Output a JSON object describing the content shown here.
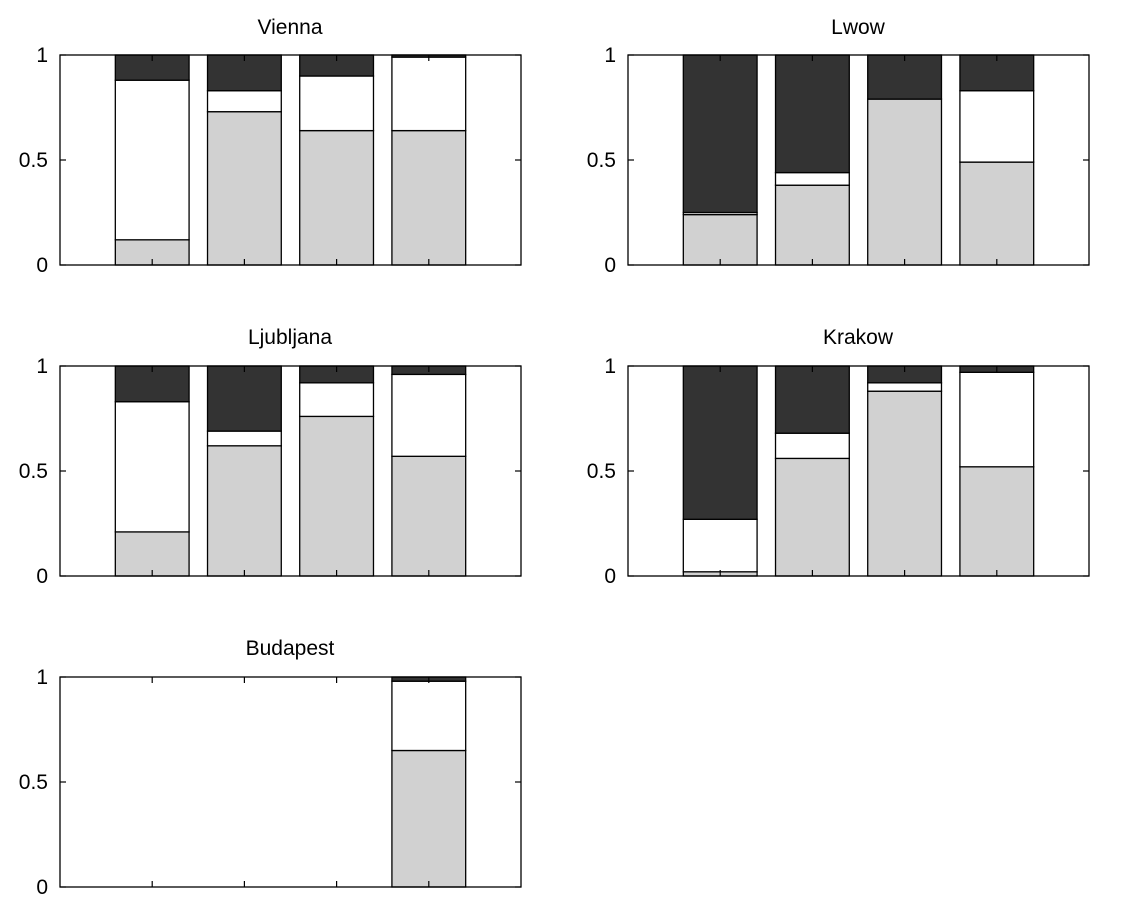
{
  "colors": {
    "bottom_segment": "#d1d1d1",
    "middle_segment": "#ffffff",
    "top_segment": "#333333",
    "axes": "#000000"
  },
  "chart_data": [
    {
      "type": "bar",
      "stacked": true,
      "title": "Vienna",
      "xlabel": "",
      "ylabel": "",
      "ylim": [
        0,
        1
      ],
      "yticks": [
        "0",
        "0.5",
        "1"
      ],
      "grid": false,
      "n_categories": 4,
      "segments": [
        {
          "bottom": 0.12,
          "middle": 0.76,
          "top": 0.12
        },
        {
          "bottom": 0.73,
          "middle": 0.1,
          "top": 0.17
        },
        {
          "bottom": 0.64,
          "middle": 0.26,
          "top": 0.1
        },
        {
          "bottom": 0.64,
          "middle": 0.35,
          "top": 0.01
        }
      ]
    },
    {
      "type": "bar",
      "stacked": true,
      "title": "Lwow",
      "xlabel": "",
      "ylabel": "",
      "ylim": [
        0,
        1
      ],
      "yticks": [
        "0",
        "0.5",
        "1"
      ],
      "grid": false,
      "n_categories": 4,
      "segments": [
        {
          "bottom": 0.24,
          "middle": 0.01,
          "top": 0.75
        },
        {
          "bottom": 0.38,
          "middle": 0.06,
          "top": 0.56
        },
        {
          "bottom": 0.79,
          "middle": 0.0,
          "top": 0.21
        },
        {
          "bottom": 0.49,
          "middle": 0.34,
          "top": 0.17
        }
      ]
    },
    {
      "type": "bar",
      "stacked": true,
      "title": "Ljubljana",
      "xlabel": "",
      "ylabel": "",
      "ylim": [
        0,
        1
      ],
      "yticks": [
        "0",
        "0.5",
        "1"
      ],
      "grid": false,
      "n_categories": 4,
      "segments": [
        {
          "bottom": 0.21,
          "middle": 0.62,
          "top": 0.17
        },
        {
          "bottom": 0.62,
          "middle": 0.07,
          "top": 0.31
        },
        {
          "bottom": 0.76,
          "middle": 0.16,
          "top": 0.08
        },
        {
          "bottom": 0.57,
          "middle": 0.39,
          "top": 0.04
        }
      ]
    },
    {
      "type": "bar",
      "stacked": true,
      "title": "Krakow",
      "xlabel": "",
      "ylabel": "",
      "ylim": [
        0,
        1
      ],
      "yticks": [
        "0",
        "0.5",
        "1"
      ],
      "grid": false,
      "n_categories": 4,
      "segments": [
        {
          "bottom": 0.02,
          "middle": 0.25,
          "top": 0.73
        },
        {
          "bottom": 0.56,
          "middle": 0.12,
          "top": 0.32
        },
        {
          "bottom": 0.88,
          "middle": 0.04,
          "top": 0.08
        },
        {
          "bottom": 0.52,
          "middle": 0.45,
          "top": 0.03
        }
      ]
    },
    {
      "type": "bar",
      "stacked": true,
      "title": "Budapest",
      "xlabel": "",
      "ylabel": "",
      "ylim": [
        0,
        1
      ],
      "yticks": [
        "0",
        "0.5",
        "1"
      ],
      "grid": false,
      "n_categories": 4,
      "segments": [
        {
          "bottom": 0.0,
          "middle": 0.0,
          "top": 0.0
        },
        {
          "bottom": 0.0,
          "middle": 0.0,
          "top": 0.0
        },
        {
          "bottom": 0.0,
          "middle": 0.0,
          "top": 0.0
        },
        {
          "bottom": 0.65,
          "middle": 0.33,
          "top": 0.02
        }
      ]
    }
  ]
}
